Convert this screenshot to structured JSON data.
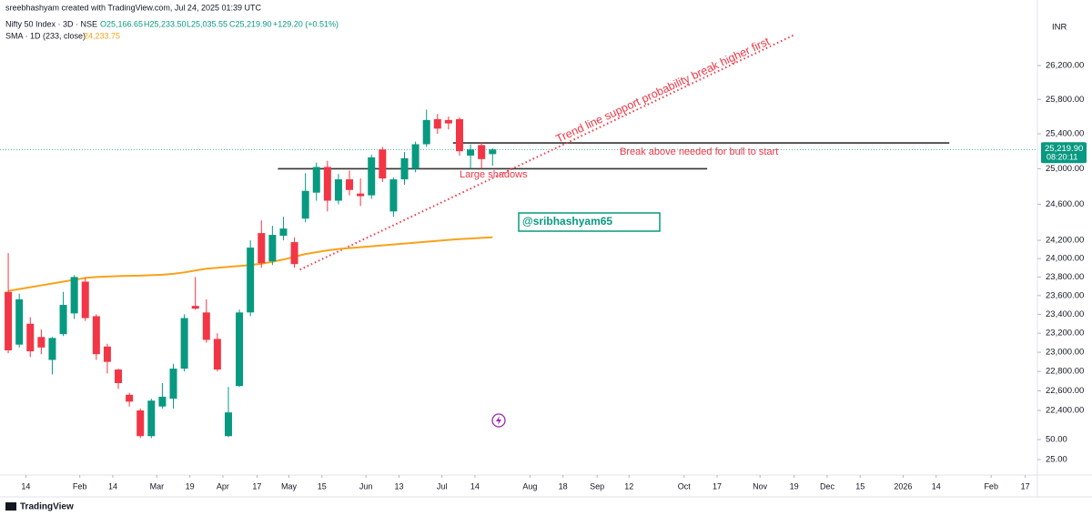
{
  "chart_data": {
    "type": "candlestick",
    "credit": "sreebhashyam created with TradingView.com, Jul 24, 2025 01:39 UTC",
    "symbol": "Nifty 50 Index · 3D · NSE",
    "ohlc": [
      "O25,166.65",
      "H25,233.50",
      "L25,035.55",
      "C25,219.90",
      "+129.20 (+0.51%)"
    ],
    "currency": "INR",
    "up_color": "#089981",
    "down_color": "#f23645",
    "x": [
      0,
      1,
      2,
      3,
      4,
      5,
      6,
      7,
      8,
      9,
      10,
      11,
      12,
      13,
      14,
      15,
      16,
      17,
      18,
      19,
      20,
      21,
      22,
      23,
      24,
      25,
      26,
      27,
      28,
      29,
      30,
      31,
      32,
      33,
      34,
      35,
      36,
      37,
      38,
      39,
      40,
      41,
      42,
      43,
      44
    ],
    "open": [
      23640,
      23080,
      23300,
      23160,
      22920,
      23190,
      23410,
      23750,
      23380,
      23060,
      22820,
      22560,
      22400,
      22140,
      22440,
      22520,
      22830,
      23490,
      23420,
      23140,
      22140,
      22650,
      23420,
      24280,
      23970,
      24250,
      24180,
      24440,
      24730,
      25020,
      24640,
      24880,
      24720,
      24700,
      25220,
      24520,
      24880,
      25000,
      25280,
      25570,
      25560,
      25570,
      25150,
      25270,
      25166.65
    ],
    "high": [
      24060,
      23620,
      23370,
      23240,
      23160,
      23640,
      23820,
      23790,
      23400,
      23090,
      22830,
      22580,
      22420,
      22520,
      22680,
      22880,
      23400,
      23800,
      23560,
      23200,
      22640,
      23450,
      24200,
      24420,
      24360,
      24460,
      24230,
      24950,
      25070,
      25090,
      24940,
      24980,
      24890,
      25160,
      25250,
      24900,
      25190,
      25310,
      25680,
      25630,
      25600,
      25590,
      25280,
      25300,
      25233.5
    ],
    "low": [
      22990,
      23050,
      22950,
      22980,
      22770,
      23170,
      23350,
      23330,
      22920,
      22780,
      22620,
      22440,
      22120,
      22120,
      22420,
      22420,
      22800,
      23450,
      23100,
      22800,
      22130,
      22640,
      23380,
      23900,
      23930,
      24200,
      23900,
      24400,
      24640,
      24520,
      24600,
      24700,
      24580,
      24660,
      24850,
      24460,
      24820,
      24960,
      25250,
      25400,
      25450,
      25150,
      25000,
      25000,
      25035.55
    ],
    "close": [
      23020,
      23560,
      23010,
      23050,
      23150,
      23500,
      23800,
      23360,
      22980,
      22900,
      22680,
      22490,
      22140,
      22500,
      22540,
      22830,
      23360,
      23460,
      23130,
      22820,
      22380,
      23420,
      24120,
      23950,
      24260,
      24330,
      23940,
      24750,
      25020,
      24640,
      24880,
      24760,
      24690,
      25130,
      24890,
      24880,
      25120,
      25280,
      25560,
      25460,
      25520,
      25200,
      25220,
      25110,
      25219.9
    ],
    "last_label": "25,219.90",
    "countdown": "08:20:11",
    "sma": {
      "name": "SMA · 1D (233, close)",
      "value_label": "24,233.75",
      "color": "#f7a21b",
      "values": [
        23650,
        23670,
        23690,
        23710,
        23730,
        23750,
        23770,
        23790,
        23800,
        23805,
        23810,
        23812,
        23815,
        23820,
        23825,
        23835,
        23850,
        23870,
        23890,
        23900,
        23910,
        23920,
        23930,
        23945,
        23965,
        23990,
        24020,
        24050,
        24070,
        24090,
        24105,
        24115,
        24125,
        24135,
        24145,
        24155,
        24165,
        24175,
        24185,
        24195,
        24205,
        24213,
        24220,
        24227,
        24233.75
      ]
    },
    "ylim": [
      21770,
      26770
    ],
    "log_scale": true,
    "grid": false,
    "yticks": [
      {
        "value": 26200,
        "label": "26,200.00"
      },
      {
        "value": 25800,
        "label": "25,800.00"
      },
      {
        "value": 25400,
        "label": "25,400.00"
      },
      {
        "value": 25000,
        "label": "25,000.00"
      },
      {
        "value": 24600,
        "label": "24,600.00"
      },
      {
        "value": 24200,
        "label": "24,200.00"
      },
      {
        "value": 24000,
        "label": "24,000.00"
      },
      {
        "value": 23800,
        "label": "23,800.00"
      },
      {
        "value": 23600,
        "label": "23,600.00"
      },
      {
        "value": 23400,
        "label": "23,400.00"
      },
      {
        "value": 23200,
        "label": "23,200.00"
      },
      {
        "value": 23000,
        "label": "23,000.00"
      },
      {
        "value": 22800,
        "label": "22,800.00"
      },
      {
        "value": 22600,
        "label": "22,600.00"
      },
      {
        "value": 22400,
        "label": "22,400.00"
      }
    ],
    "y2lim": [
      0,
      75
    ],
    "y2ticks": [
      {
        "value": 50,
        "label": "50.00"
      },
      {
        "value": 25,
        "label": "25.00"
      }
    ],
    "xlim": [
      -0.75,
      93.5
    ],
    "xticks": [
      {
        "value": 1.6,
        "label": "14"
      },
      {
        "value": 6.5,
        "label": "Feb"
      },
      {
        "value": 9.5,
        "label": "14"
      },
      {
        "value": 13.5,
        "label": "Mar"
      },
      {
        "value": 16.5,
        "label": "19"
      },
      {
        "value": 19.5,
        "label": "Apr"
      },
      {
        "value": 22.6,
        "label": "17"
      },
      {
        "value": 25.5,
        "label": "May"
      },
      {
        "value": 28.5,
        "label": "15"
      },
      {
        "value": 32.5,
        "label": "Jun"
      },
      {
        "value": 35.5,
        "label": "13"
      },
      {
        "value": 39.4,
        "label": "Jul"
      },
      {
        "value": 42.4,
        "label": "14"
      },
      {
        "value": 47.4,
        "label": "Aug"
      },
      {
        "value": 50.4,
        "label": "18"
      },
      {
        "value": 53.5,
        "label": "Sep"
      },
      {
        "value": 56.4,
        "label": "12"
      },
      {
        "value": 61.4,
        "label": "Oct"
      },
      {
        "value": 64.4,
        "label": "17"
      },
      {
        "value": 68.3,
        "label": "Nov"
      },
      {
        "value": 71.4,
        "label": "19"
      },
      {
        "value": 74.4,
        "label": "Dec"
      },
      {
        "value": 77.4,
        "label": "15"
      },
      {
        "value": 81.3,
        "label": "2026"
      },
      {
        "value": 84.3,
        "label": "14"
      },
      {
        "value": 89.3,
        "label": "Feb"
      },
      {
        "value": 92.4,
        "label": "17"
      }
    ],
    "hlines": [
      {
        "x": [
          24.5,
          63.5
        ],
        "price": 25000
      },
      {
        "x": [
          40.4,
          85.5
        ],
        "price": 25295
      }
    ],
    "trendline": {
      "x": [
        26.5,
        71.4
      ],
      "price": [
        23880,
        26567
      ],
      "color": "#f23645"
    },
    "notes": {
      "trend": "Trend line support probability break higher first",
      "break": "Break above needed for bull to start",
      "shadows": "Large shadows",
      "handle": "@sribhashyam65"
    },
    "brand": "TradingView"
  }
}
